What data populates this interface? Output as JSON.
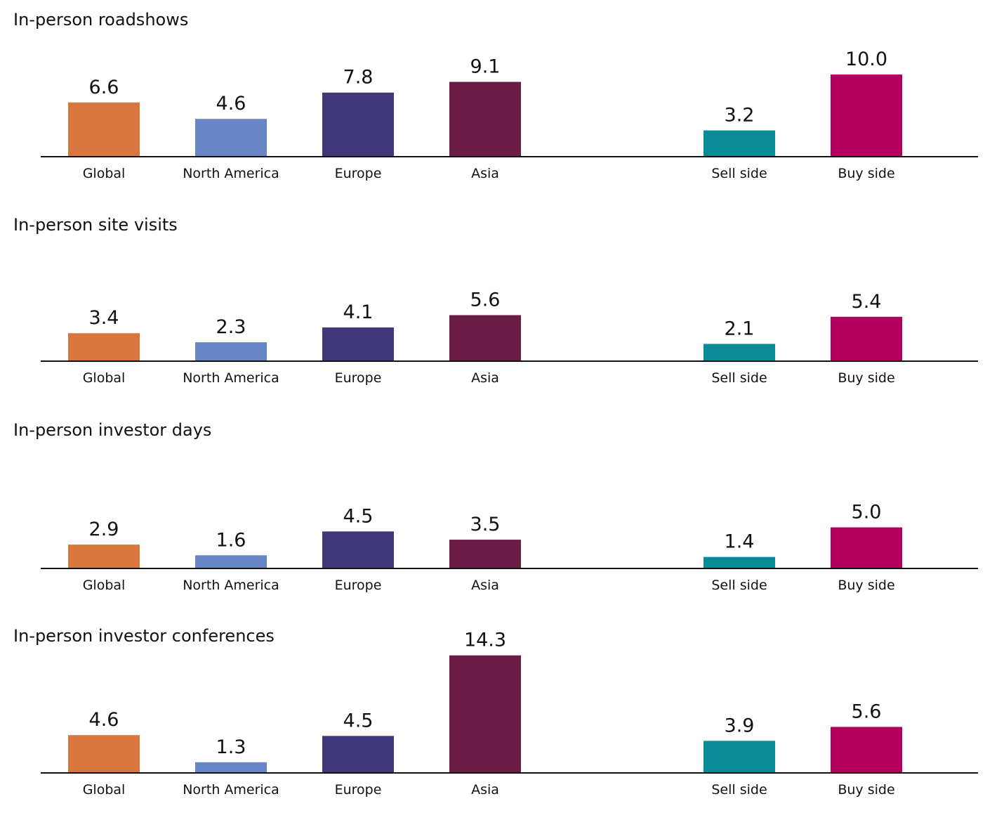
{
  "chart_data": [
    {
      "type": "bar",
      "title": "In-person roadshows",
      "categories": [
        "Global",
        "North America",
        "Europe",
        "Asia",
        "Sell side",
        "Buy side"
      ],
      "values": [
        6.6,
        4.6,
        7.8,
        9.1,
        3.2,
        10.0
      ],
      "value_labels": [
        "6.6",
        "4.6",
        "7.8",
        "9.1",
        "3.2",
        "10.0"
      ],
      "colors": [
        "#d9763e",
        "#6886c5",
        "#413879",
        "#6b1e45",
        "#0a8a97",
        "#b3005e"
      ]
    },
    {
      "type": "bar",
      "title": "In-person site visits",
      "categories": [
        "Global",
        "North America",
        "Europe",
        "Asia",
        "Sell side",
        "Buy side"
      ],
      "values": [
        3.4,
        2.3,
        4.1,
        5.6,
        2.1,
        5.4
      ],
      "value_labels": [
        "3.4",
        "2.3",
        "4.1",
        "5.6",
        "2.1",
        "5.4"
      ],
      "colors": [
        "#d9763e",
        "#6886c5",
        "#413879",
        "#6b1e45",
        "#0a8a97",
        "#b3005e"
      ]
    },
    {
      "type": "bar",
      "title": "In-person investor days",
      "categories": [
        "Global",
        "North America",
        "Europe",
        "Asia",
        "Sell side",
        "Buy side"
      ],
      "values": [
        2.9,
        1.6,
        4.5,
        3.5,
        1.4,
        5.0
      ],
      "value_labels": [
        "2.9",
        "1.6",
        "4.5",
        "3.5",
        "1.4",
        "5.0"
      ],
      "colors": [
        "#d9763e",
        "#6886c5",
        "#413879",
        "#6b1e45",
        "#0a8a97",
        "#b3005e"
      ]
    },
    {
      "type": "bar",
      "title": "In-person investor conferences",
      "categories": [
        "Global",
        "North America",
        "Europe",
        "Asia",
        "Sell side",
        "Buy side"
      ],
      "values": [
        4.6,
        1.3,
        4.5,
        14.3,
        3.9,
        5.6
      ],
      "value_labels": [
        "4.6",
        "1.3",
        "4.5",
        "14.3",
        "3.9",
        "5.6"
      ],
      "colors": [
        "#d9763e",
        "#6886c5",
        "#413879",
        "#6b1e45",
        "#0a8a97",
        "#b3005e"
      ]
    }
  ]
}
